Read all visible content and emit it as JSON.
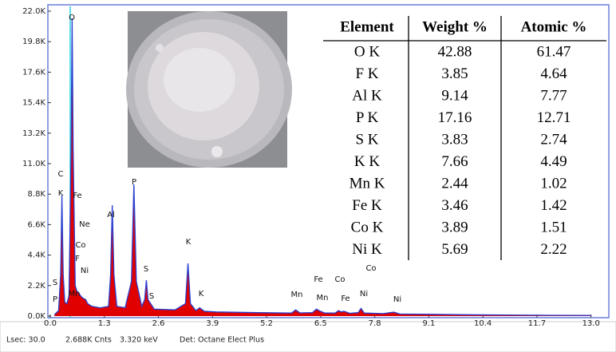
{
  "chart_data": {
    "type": "area",
    "color": "#e00000",
    "line_color": "#2a3fd0",
    "x": [
      0.1,
      0.2,
      0.25,
      0.28,
      0.31,
      0.35,
      0.4,
      0.45,
      0.5,
      0.525,
      0.55,
      0.6,
      0.64,
      0.68,
      0.72,
      0.78,
      0.85,
      0.9,
      1.0,
      1.2,
      1.4,
      1.45,
      1.49,
      1.53,
      1.6,
      1.8,
      1.95,
      2.01,
      2.07,
      2.2,
      2.27,
      2.31,
      2.35,
      2.5,
      3.0,
      3.25,
      3.31,
      3.37,
      3.5,
      3.59,
      3.7,
      4.0,
      5.0,
      5.8,
      5.9,
      6.0,
      6.3,
      6.4,
      6.49,
      6.6,
      6.85,
      6.93,
      7.0,
      7.06,
      7.2,
      7.4,
      7.47,
      7.55,
      8.0,
      8.26,
      8.4,
      9.0,
      10.0,
      11.0,
      12.0,
      13.0
    ],
    "values": [
      100,
      400,
      3000,
      8700,
      3000,
      1000,
      900,
      1500,
      12000,
      21500,
      12000,
      2200,
      1800,
      1700,
      1500,
      1300,
      1200,
      900,
      700,
      600,
      700,
      3000,
      8000,
      3000,
      700,
      600,
      2500,
      9500,
      2500,
      700,
      1200,
      2600,
      1200,
      500,
      450,
      900,
      3800,
      900,
      400,
      600,
      350,
      300,
      250,
      220,
      450,
      230,
      250,
      500,
      350,
      220,
      220,
      400,
      300,
      350,
      200,
      250,
      550,
      220,
      180,
      280,
      150,
      130,
      100,
      80,
      60,
      50
    ],
    "xlim": [
      0,
      13.37
    ],
    "ylim": [
      0,
      22000
    ],
    "xticks": [
      {
        "value": 0,
        "label": "0.0"
      },
      1.3,
      2.6,
      3.9,
      5.2,
      6.5,
      7.8,
      9.1,
      10.4,
      11.7,
      {
        "value": 13,
        "label": "13.0"
      }
    ],
    "yticks": [
      {
        "value": 0,
        "label": "0.0K"
      },
      {
        "value": 2200,
        "label": "2.2K"
      },
      {
        "value": 4400,
        "label": "4.4K"
      },
      {
        "value": 6600,
        "label": "6.6K"
      },
      {
        "value": 8800,
        "label": "8.8K"
      },
      {
        "value": 11000,
        "label": "11.0K"
      },
      {
        "value": 13200,
        "label": "13.2K"
      },
      {
        "value": 15400,
        "label": "15.4K"
      },
      {
        "value": 17600,
        "label": "17.6K"
      },
      {
        "value": 19800,
        "label": "19.8K"
      },
      {
        "value": 22000,
        "label": "22.0K"
      }
    ],
    "annotations": [
      "O",
      "C",
      "K",
      "Fe",
      "Ne",
      "Co",
      "F",
      "Ni",
      "S",
      "P",
      "Mn",
      "Al",
      "P",
      "S",
      "S",
      "K",
      "K",
      "Mn",
      "Fe",
      "Mn",
      "Co",
      "Fe",
      "Co",
      "Ni",
      "Ni"
    ]
  },
  "table": {
    "header": [
      "Element",
      "Weight %",
      "Atomic %"
    ],
    "rows": [
      [
        "O K",
        "42.88",
        "61.47"
      ],
      [
        "F K",
        "3.85",
        "4.64"
      ],
      [
        "Al K",
        "9.14",
        "7.77"
      ],
      [
        "P K",
        "17.16",
        "12.71"
      ],
      [
        "S K",
        "3.83",
        "2.74"
      ],
      [
        "K K",
        "7.66",
        "4.49"
      ],
      [
        "Mn K",
        "2.44",
        "1.02"
      ],
      [
        "Fe K",
        "3.46",
        "1.42"
      ],
      [
        "Co K",
        "3.89",
        "1.51"
      ],
      [
        "Ni K",
        "5.69",
        "2.22"
      ]
    ]
  },
  "status_bar": [
    "Lsec: 30.0",
    "2.688K Cnts",
    "3.320 keV",
    "Det: Octane Elect Plus"
  ]
}
